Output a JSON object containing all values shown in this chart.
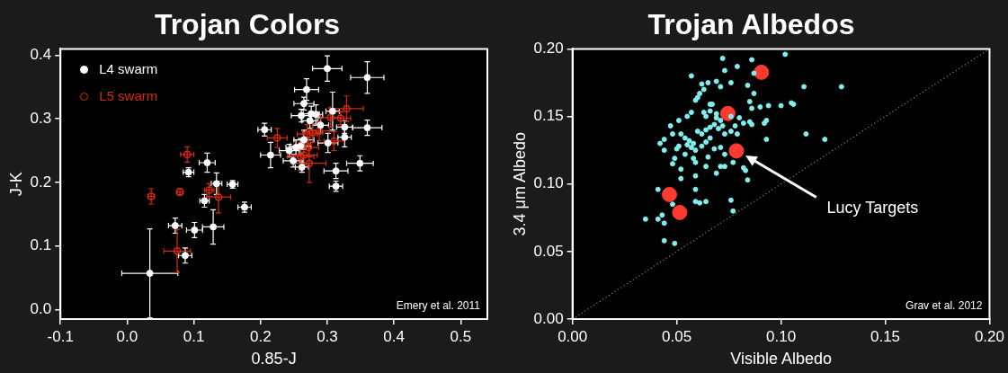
{
  "chart_data": [
    {
      "type": "scatter",
      "title": "Trojan Colors",
      "xlabel": "0.85-J",
      "ylabel": "J-K",
      "xlim": [
        -0.1,
        0.54
      ],
      "ylim": [
        -0.015,
        0.41
      ],
      "xticks": [
        {
          "value": -0.1,
          "label": "-0.1"
        },
        {
          "value": 0,
          "label": "0.0"
        },
        {
          "value": 0.1,
          "label": "0.1"
        },
        {
          "value": 0.2,
          "label": "0.2"
        },
        {
          "value": 0.3,
          "label": "0.3"
        },
        {
          "value": 0.4,
          "label": "0.4"
        },
        {
          "value": 0.5,
          "label": "0.5"
        }
      ],
      "yticks": [
        {
          "value": 0,
          "label": "0.0"
        },
        {
          "value": 0.1,
          "label": "0.1"
        },
        {
          "value": 0.2,
          "label": "0.2"
        },
        {
          "value": 0.3,
          "label": "0.3"
        },
        {
          "value": 0.4,
          "label": "0.4"
        }
      ],
      "legend": "top left",
      "marker": "circle",
      "annotations": [
        "Emery et al. 2011"
      ],
      "series": [
        {
          "name": "L4 swarm",
          "color": "#ffffff",
          "x": [
            0.034,
            0.072,
            0.087,
            0.101,
            0.129,
            0.092,
            0.12,
            0.116,
            0.134,
            0.158,
            0.176,
            0.206,
            0.215,
            0.3,
            0.36,
            0.269,
            0.265,
            0.308,
            0.261,
            0.276,
            0.283,
            0.326,
            0.36,
            0.326,
            0.301,
            0.265,
            0.243,
            0.249,
            0.262,
            0.313,
            0.349,
            0.313,
            0.26,
            0.274,
            0.29,
            0.253
          ],
          "values": [
            0.057,
            0.132,
            0.085,
            0.125,
            0.13,
            0.216,
            0.231,
            0.171,
            0.198,
            0.197,
            0.161,
            0.283,
            0.243,
            0.379,
            0.365,
            0.346,
            0.324,
            0.312,
            0.305,
            0.308,
            0.307,
            0.287,
            0.286,
            0.271,
            0.262,
            0.267,
            0.25,
            0.234,
            0.224,
            0.218,
            0.23,
            0.194,
            0.257,
            0.297,
            0.29,
            0.255
          ],
          "xerrors": [
            0.042,
            0.01,
            0.01,
            0.012,
            0.016,
            0.008,
            0.012,
            0.007,
            0.008,
            0.008,
            0.01,
            0.01,
            0.015,
            0.022,
            0.025,
            0.018,
            0.015,
            0.01,
            0.015,
            0.012,
            0.01,
            0.012,
            0.022,
            0.01,
            0.015,
            0.015,
            0.015,
            0.015,
            0.01,
            0.018,
            0.02,
            0.01,
            0.015,
            0.012,
            0.012,
            0.015
          ],
          "errors": [
            0.07,
            0.012,
            0.012,
            0.012,
            0.027,
            0.007,
            0.015,
            0.01,
            0.017,
            0.006,
            0.008,
            0.01,
            0.02,
            0.02,
            0.025,
            0.017,
            0.01,
            0.03,
            0.01,
            0.012,
            0.015,
            0.01,
            0.012,
            0.015,
            0.015,
            0.015,
            0.01,
            0.01,
            0.008,
            0.012,
            0.012,
            0.008,
            0.012,
            0.012,
            0.012,
            0.012
          ]
        },
        {
          "name": "L5 swarm",
          "color": "#d42a10",
          "x": [
            0.036,
            0.079,
            0.09,
            0.123,
            0.137,
            0.075,
            0.225,
            0.329,
            0.305,
            0.32,
            0.288,
            0.278,
            0.27,
            0.31,
            0.273,
            0.265,
            0.272,
            0.26
          ],
          "values": [
            0.178,
            0.185,
            0.244,
            0.188,
            0.177,
            0.092,
            0.27,
            0.316,
            0.302,
            0.301,
            0.281,
            0.278,
            0.276,
            0.265,
            0.23,
            0.243,
            0.255,
            0.241
          ],
          "xerrors": [
            0.005,
            0.005,
            0.01,
            0.007,
            0.018,
            0.02,
            0.015,
            0.025,
            0.015,
            0.015,
            0.015,
            0.015,
            0.015,
            0.015,
            0.025,
            0.02,
            0.015,
            0.02
          ],
          "errors": [
            0.012,
            0.005,
            0.012,
            0.01,
            0.025,
            0.034,
            0.015,
            0.02,
            0.015,
            0.01,
            0.015,
            0.015,
            0.015,
            0.015,
            0.03,
            0.015,
            0.015,
            0.022
          ]
        }
      ]
    },
    {
      "type": "scatter",
      "title": "Trojan Albedos",
      "xlabel": "Visible Albedo",
      "ylabel": "3.4 μm Albedo",
      "xlim": [
        0,
        0.2
      ],
      "ylim": [
        0,
        0.2
      ],
      "xticks": [
        {
          "value": 0,
          "label": "0.00"
        },
        {
          "value": 0.05,
          "label": "0.05"
        },
        {
          "value": 0.1,
          "label": "0.10"
        },
        {
          "value": 0.15,
          "label": "0.15"
        },
        {
          "value": 0.2,
          "label": "0.20"
        }
      ],
      "yticks": [
        {
          "value": 0,
          "label": "0.00"
        },
        {
          "value": 0.05,
          "label": "0.05"
        },
        {
          "value": 0.1,
          "label": "0.10"
        },
        {
          "value": 0.15,
          "label": "0.15"
        },
        {
          "value": 0.2,
          "label": "0.20"
        }
      ],
      "marker": "circle",
      "annotations": [
        "Lucy Targets",
        "Grav et al. 2012"
      ],
      "series": [
        {
          "type": "line",
          "color": "#9a9a9a",
          "line_style": "dotted",
          "marker": "none",
          "x": [
            0,
            0.2
          ],
          "values": [
            0,
            0.2
          ]
        },
        {
          "color": "#80eeee",
          "x": [
            0.072,
            0.086,
            0.102,
            0.073,
            0.079,
            0.087,
            0.057,
            0.062,
            0.065,
            0.069,
            0.076,
            0.084,
            0.063,
            0.061,
            0.06,
            0.059,
            0.071,
            0.087,
            0.085,
            0.09,
            0.094,
            0.1,
            0.105,
            0.086,
            0.066,
            0.067,
            0.057,
            0.055,
            0.051,
            0.047,
            0.063,
            0.066,
            0.064,
            0.069,
            0.071,
            0.069,
            0.076,
            0.08,
            0.082,
            0.078,
            0.085,
            0.086,
            0.093,
            0.092,
            0.044,
            0.042,
            0.044,
            0.048,
            0.052,
            0.054,
            0.056,
            0.058,
            0.06,
            0.062,
            0.064,
            0.066,
            0.068,
            0.07,
            0.072,
            0.073,
            0.076,
            0.079,
            0.066,
            0.064,
            0.062,
            0.059,
            0.057,
            0.055,
            0.051,
            0.05,
            0.049,
            0.048,
            0.052,
            0.054,
            0.058,
            0.059,
            0.065,
            0.068,
            0.071,
            0.073,
            0.077,
            0.071,
            0.073,
            0.069,
            0.064,
            0.059,
            0.052,
            0.082,
            0.083,
            0.084,
            0.093,
            0.041,
            0.059,
            0.035,
            0.041,
            0.043,
            0.044,
            0.044,
            0.049,
            0.048,
            0.059,
            0.061,
            0.064,
            0.076,
            0.077,
            0.111,
            0.106,
            0.112,
            0.121,
            0.129
          ],
          "values": [
            0.193,
            0.192,
            0.196,
            0.184,
            0.187,
            0.182,
            0.18,
            0.174,
            0.175,
            0.176,
            0.175,
            0.173,
            0.17,
            0.167,
            0.164,
            0.162,
            0.172,
            0.167,
            0.161,
            0.157,
            0.158,
            0.158,
            0.16,
            0.156,
            0.159,
            0.159,
            0.153,
            0.15,
            0.147,
            0.143,
            0.153,
            0.154,
            0.15,
            0.149,
            0.147,
            0.152,
            0.15,
            0.149,
            0.145,
            0.143,
            0.146,
            0.144,
            0.147,
            0.145,
            0.133,
            0.13,
            0.125,
            0.137,
            0.137,
            0.134,
            0.132,
            0.13,
            0.139,
            0.137,
            0.14,
            0.142,
            0.144,
            0.141,
            0.143,
            0.137,
            0.139,
            0.137,
            0.134,
            0.131,
            0.128,
            0.125,
            0.127,
            0.129,
            0.128,
            0.126,
            0.119,
            0.115,
            0.111,
            0.122,
            0.119,
            0.116,
            0.12,
            0.126,
            0.127,
            0.122,
            0.116,
            0.113,
            0.113,
            0.108,
            0.113,
            0.106,
            0.104,
            0.112,
            0.11,
            0.103,
            0.133,
            0.096,
            0.096,
            0.074,
            0.074,
            0.077,
            0.071,
            0.058,
            0.056,
            0.085,
            0.087,
            0.086,
            0.087,
            0.088,
            0.08,
            0.172,
            0.159,
            0.137,
            0.133,
            0.172
          ]
        },
        {
          "color": "#ff3a30",
          "x": [
            0.0906,
            0.0745,
            0.0786,
            0.0465,
            0.0514
          ],
          "values": [
            0.1827,
            0.1522,
            0.1245,
            0.0922,
            0.0789
          ]
        }
      ]
    }
  ]
}
